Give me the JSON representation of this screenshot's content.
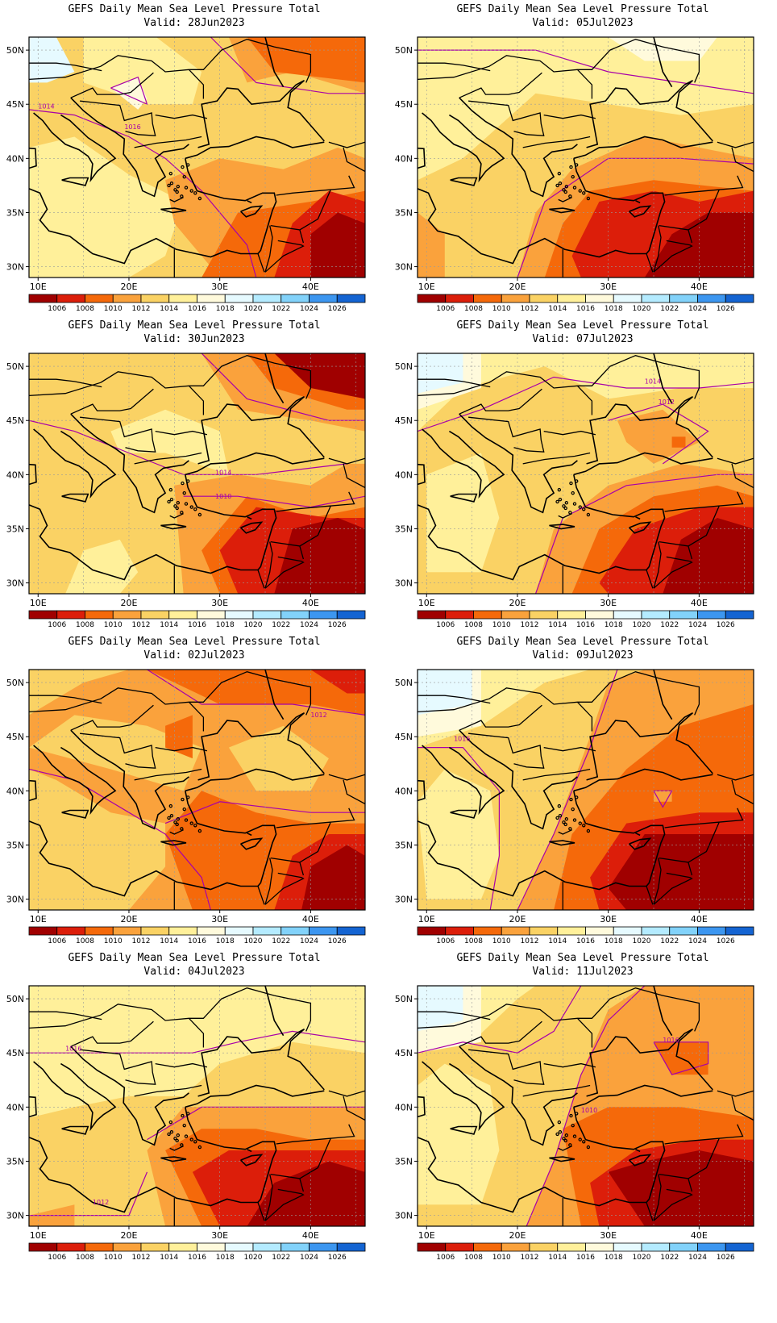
{
  "panels": [
    {
      "title": "GEFS Daily Mean Sea Level Pressure Total",
      "valid": "Valid: 28Jun2023",
      "scenario": "a",
      "contour_labels": [
        "1014",
        "1016"
      ]
    },
    {
      "title": "GEFS Daily Mean Sea Level Pressure Total",
      "valid": "Valid: 05Jul2023",
      "scenario": "b",
      "contour_labels": []
    },
    {
      "title": "GEFS Daily Mean Sea Level Pressure Total",
      "valid": "Valid: 30Jun2023",
      "scenario": "c",
      "contour_labels": [
        "1014",
        "1010"
      ]
    },
    {
      "title": "GEFS Daily Mean Sea Level Pressure Total",
      "valid": "Valid: 07Jul2023",
      "scenario": "d",
      "contour_labels": [
        "1014",
        "1012"
      ]
    },
    {
      "title": "GEFS Daily Mean Sea Level Pressure Total",
      "valid": "Valid: 02Jul2023",
      "scenario": "e",
      "contour_labels": [
        "1012"
      ]
    },
    {
      "title": "GEFS Daily Mean Sea Level Pressure Total",
      "valid": "Valid: 09Jul2023",
      "scenario": "f",
      "contour_labels": [
        "1016"
      ]
    },
    {
      "title": "GEFS Daily Mean Sea Level Pressure Total",
      "valid": "Valid: 04Jul2023",
      "scenario": "g",
      "contour_labels": [
        "1016",
        "1012"
      ]
    },
    {
      "title": "GEFS Daily Mean Sea Level Pressure Total",
      "valid": "Valid: 11Jul2023",
      "scenario": "h",
      "contour_labels": [
        "1010",
        "1016"
      ]
    }
  ],
  "lat_labels": [
    "50N",
    "45N",
    "40N",
    "35N",
    "30N"
  ],
  "lon_labels": [
    "10E",
    "20E",
    "30E",
    "40E"
  ],
  "colorbar": {
    "levels": [
      "1006",
      "1008",
      "1010",
      "1012",
      "1014",
      "1016",
      "1018",
      "1020",
      "1022",
      "1024",
      "1026"
    ],
    "colors": [
      "#a00000",
      "#dc1e0a",
      "#f5690a",
      "#faa23c",
      "#fad264",
      "#fff09a",
      "#fffadc",
      "#e6faff",
      "#b4ebff",
      "#82d2fa",
      "#3c96f0",
      "#1464d2"
    ]
  }
}
